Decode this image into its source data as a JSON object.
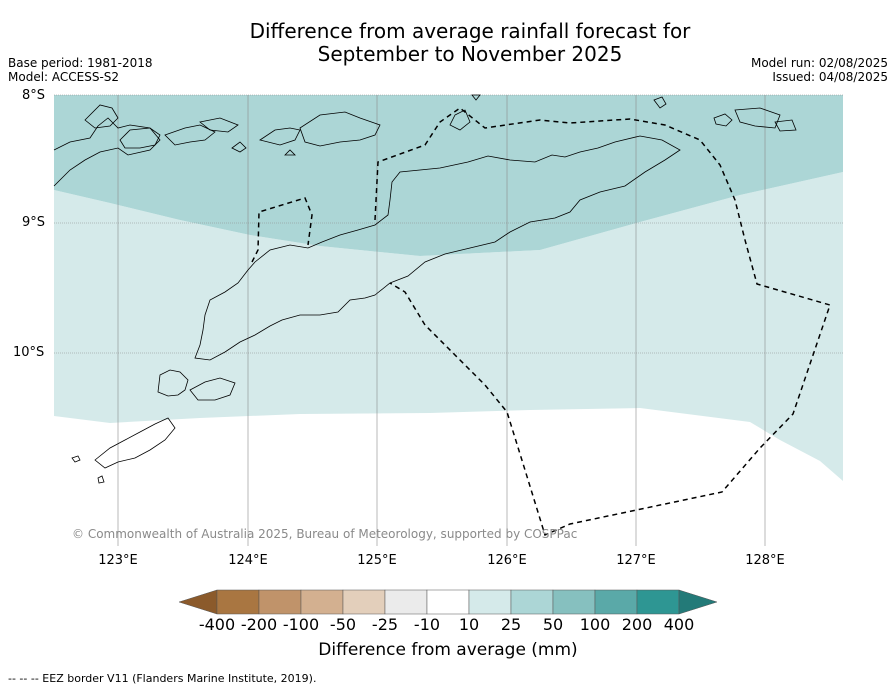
{
  "title_line1": "Difference from average rainfall forecast for",
  "title_line2": "September to November 2025",
  "base_period": "Base period: 1981-2018",
  "model": "Model: ACCESS-S2",
  "model_run": "Model run: 02/08/2025",
  "issued": "Issued: 04/08/2025",
  "lat_labels": [
    "8°S",
    "9°S",
    "10°S"
  ],
  "lon_labels": [
    "123°E",
    "124°E",
    "125°E",
    "126°E",
    "127°E",
    "128°E"
  ],
  "copyright": "© Commonwealth of Australia 2025, Bureau of Meteorology, supported by COSPPac",
  "colorbar": {
    "labels": [
      "-400",
      "-200",
      "-100",
      "-50",
      "-25",
      "-10",
      "10",
      "25",
      "50",
      "100",
      "200",
      "400"
    ],
    "colors": [
      "#8b5a2b",
      "#a97641",
      "#c0936a",
      "#d3b090",
      "#e3cfbb",
      "#ebebeb",
      "#ffffff",
      "#d5eaea",
      "#acd6d6",
      "#86c0bf",
      "#5aa9a8",
      "#2e9693",
      "#237a78"
    ],
    "title": "Difference from average (mm)"
  },
  "footnote": "-- -- -- EEZ border V11 (Flanders Marine Institute, 2019).",
  "map": {
    "colors": {
      "band_25_50": "#acd6d6",
      "band_10_25": "#d5eaea",
      "land_outline": "#000000",
      "grid": "#8a8a8a"
    }
  }
}
